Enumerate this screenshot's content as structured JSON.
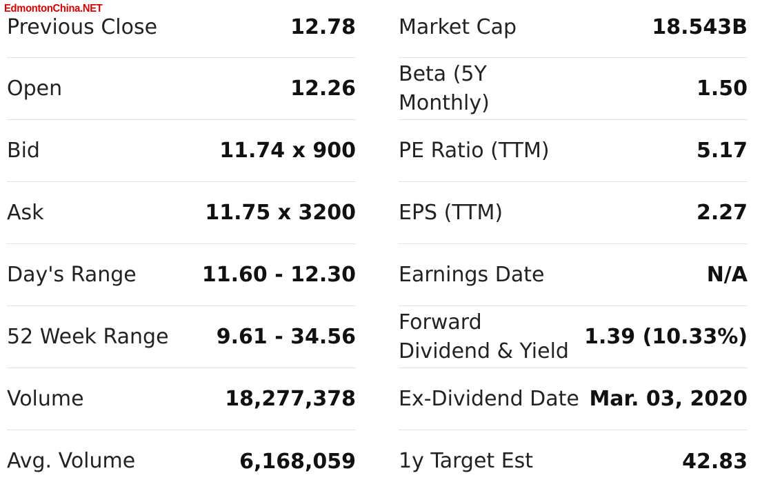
{
  "watermark": "EdmontonChina.NET",
  "left": [
    {
      "label": "Previous Close",
      "value": "12.78"
    },
    {
      "label": "Open",
      "value": "12.26"
    },
    {
      "label": "Bid",
      "value": "11.74 x 900"
    },
    {
      "label": "Ask",
      "value": "11.75 x 3200"
    },
    {
      "label": "Day's Range",
      "value": "11.60 - 12.30"
    },
    {
      "label": "52 Week Range",
      "value": "9.61 - 34.56"
    },
    {
      "label": "Volume",
      "value": "18,277,378"
    },
    {
      "label": "Avg. Volume",
      "value": "6,168,059"
    }
  ],
  "right": [
    {
      "label": "Market Cap",
      "value": "18.543B"
    },
    {
      "label": "Beta (5Y\nMonthly)",
      "value": "1.50"
    },
    {
      "label": "PE Ratio (TTM)",
      "value": "5.17"
    },
    {
      "label": "EPS (TTM)",
      "value": "2.27"
    },
    {
      "label": "Earnings Date",
      "value": "N/A"
    },
    {
      "label": "Forward\nDividend & Yield",
      "value": "1.39 (10.33%)"
    },
    {
      "label": "Ex-Dividend Date",
      "value": "Mar. 03, 2020"
    },
    {
      "label": "1y Target Est",
      "value": "42.83"
    }
  ]
}
